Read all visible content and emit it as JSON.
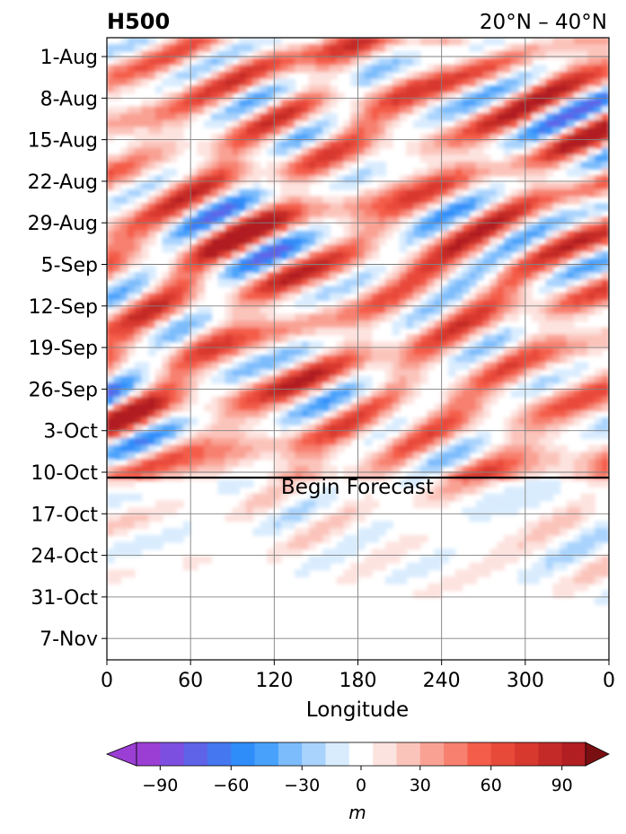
{
  "chart_data": {
    "type": "heatmap",
    "title": "H500",
    "region": "20°N – 40°N",
    "xlabel": "Longitude",
    "x_ticks": [
      "0",
      "60",
      "120",
      "180",
      "240",
      "300",
      "0"
    ],
    "x_range": [
      0,
      360
    ],
    "y_ticks": [
      "1-Aug",
      "8-Aug",
      "15-Aug",
      "22-Aug",
      "29-Aug",
      "5-Sep",
      "12-Sep",
      "19-Sep",
      "26-Sep",
      "3-Oct",
      "10-Oct",
      "17-Oct",
      "24-Oct",
      "31-Oct",
      "7-Nov"
    ],
    "grid": true,
    "annotation": "Begin Forecast",
    "forecast_start": "10-Oct",
    "colorbar": {
      "label": "m",
      "ticks": [
        "−90",
        "−60",
        "−30",
        "0",
        "30",
        "60",
        "90"
      ],
      "levels": [
        -100,
        -90,
        -80,
        -70,
        -60,
        -50,
        -40,
        -30,
        -20,
        -10,
        10,
        20,
        30,
        40,
        50,
        60,
        70,
        80,
        90,
        100
      ],
      "colors": [
        "#9b3fd4",
        "#7d4fe0",
        "#5e63e8",
        "#4578f0",
        "#2f8dfa",
        "#48a2fb",
        "#7cbcfc",
        "#a9d3fd",
        "#d9ecfe",
        "#ffffff",
        "#fde3df",
        "#fbc4bb",
        "#f9a294",
        "#f7806f",
        "#f45d4a",
        "#e84a3a",
        "#d8392f",
        "#c42b28",
        "#b11f23"
      ],
      "extend_low_color": "#9b3fd4",
      "extend_high_color": "#7a0f12"
    }
  }
}
